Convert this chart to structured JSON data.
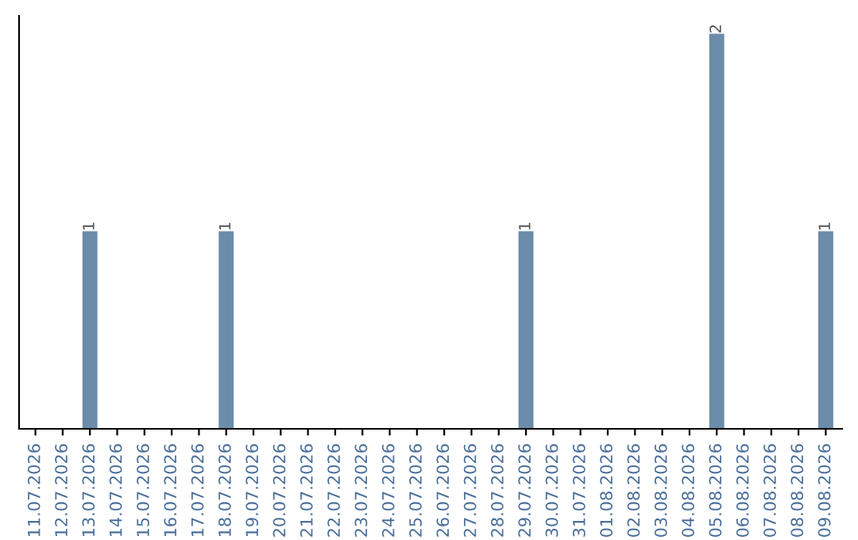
{
  "chart_data": {
    "type": "bar",
    "categories": [
      "11.07.2026",
      "12.07.2026",
      "13.07.2026",
      "14.07.2026",
      "15.07.2026",
      "16.07.2026",
      "17.07.2026",
      "18.07.2026",
      "19.07.2026",
      "20.07.2026",
      "21.07.2026",
      "22.07.2026",
      "23.07.2026",
      "24.07.2026",
      "25.07.2026",
      "26.07.2026",
      "27.07.2026",
      "28.07.2026",
      "29.07.2026",
      "30.07.2026",
      "31.07.2026",
      "01.08.2026",
      "02.08.2026",
      "03.08.2026",
      "04.08.2026",
      "05.08.2026",
      "06.08.2026",
      "07.08.2026",
      "08.08.2026",
      "09.08.2026"
    ],
    "values": [
      0,
      0,
      1,
      0,
      0,
      0,
      0,
      1,
      0,
      0,
      0,
      0,
      0,
      0,
      0,
      0,
      0,
      0,
      1,
      0,
      0,
      0,
      0,
      0,
      0,
      2,
      0,
      0,
      0,
      1
    ],
    "value_labels": [
      null,
      null,
      "1",
      null,
      null,
      null,
      null,
      "1",
      null,
      null,
      null,
      null,
      null,
      null,
      null,
      null,
      null,
      null,
      "1",
      null,
      null,
      null,
      null,
      null,
      null,
      "2",
      null,
      null,
      null,
      "1"
    ],
    "color": "#6b8caa",
    "tick_labels": "x",
    "grid": false,
    "legend": false
  }
}
